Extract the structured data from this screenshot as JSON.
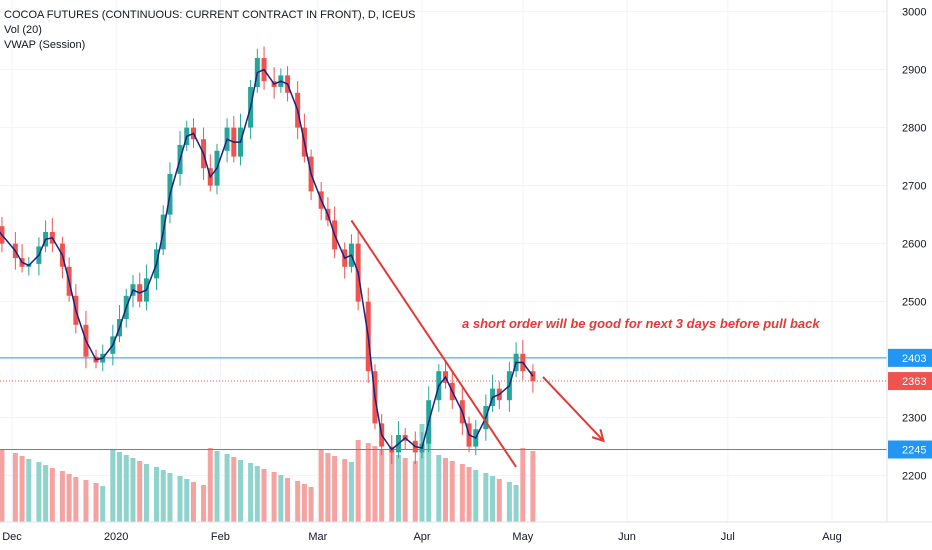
{
  "header": {
    "symbol_title": "COCOA FUTURES (CONTINUOUS: CURRENT CONTRACT IN FRONT), D, ICEUS",
    "indicator_volume": "Vol (20)",
    "indicator_vwap": "VWAP (Session)"
  },
  "annotation": {
    "text": "a short order will be good for next 3 days before pull back",
    "color": "#e53935"
  },
  "colors": {
    "up": "#26a69a",
    "down": "#ef5350",
    "vol_up": "#8fd3cc",
    "vol_down": "#f5a3a1",
    "vwap": "#1a237e",
    "hline": "#2196f3",
    "last_price": "#ef5350",
    "trendline": "#e53935"
  },
  "chart_data": {
    "type": "candlestick",
    "y_axis": {
      "range": [
        2120,
        3020
      ],
      "ticks": [
        "2200",
        "2300",
        "2400",
        "2500",
        "2600",
        "2700",
        "2800",
        "2900",
        "3000"
      ]
    },
    "x_axis": {
      "ticks": [
        {
          "label": "Dec",
          "date": "2019-12-01"
        },
        {
          "label": "2020",
          "date": "2020-01-01"
        },
        {
          "label": "Feb",
          "date": "2020-02-01"
        },
        {
          "label": "Mar",
          "date": "2020-03-01"
        },
        {
          "label": "Apr",
          "date": "2020-04-01"
        },
        {
          "label": "May",
          "date": "2020-05-01"
        },
        {
          "label": "Jun",
          "date": "2020-06-01"
        },
        {
          "label": "Jul",
          "date": "2020-07-01"
        },
        {
          "label": "Aug",
          "date": "2020-08-01"
        }
      ]
    },
    "price_lines": [
      {
        "name": "resistance",
        "value": 2403,
        "label": "2403"
      },
      {
        "name": "support",
        "value": 2245,
        "label": "2245"
      },
      {
        "name": "last-price",
        "value": 2363,
        "label": "2363"
      }
    ],
    "closes": [
      {
        "date": "2019-11-25",
        "close": 2630
      },
      {
        "date": "2019-11-28",
        "close": 2600
      },
      {
        "date": "2019-12-02",
        "close": 2575
      },
      {
        "date": "2019-12-04",
        "close": 2560
      },
      {
        "date": "2019-12-06",
        "close": 2565
      },
      {
        "date": "2019-12-09",
        "close": 2595
      },
      {
        "date": "2019-12-11",
        "close": 2620
      },
      {
        "date": "2019-12-13",
        "close": 2600
      },
      {
        "date": "2019-12-16",
        "close": 2560
      },
      {
        "date": "2019-12-18",
        "close": 2510
      },
      {
        "date": "2019-12-20",
        "close": 2460
      },
      {
        "date": "2019-12-23",
        "close": 2405
      },
      {
        "date": "2019-12-26",
        "close": 2395
      },
      {
        "date": "2019-12-28",
        "close": 2410
      },
      {
        "date": "2019-12-31",
        "close": 2440
      },
      {
        "date": "2020-01-02",
        "close": 2470
      },
      {
        "date": "2020-01-04",
        "close": 2510
      },
      {
        "date": "2020-01-06",
        "close": 2530
      },
      {
        "date": "2020-01-08",
        "close": 2500
      },
      {
        "date": "2020-01-10",
        "close": 2540
      },
      {
        "date": "2020-01-13",
        "close": 2590
      },
      {
        "date": "2020-01-15",
        "close": 2650
      },
      {
        "date": "2020-01-17",
        "close": 2720
      },
      {
        "date": "2020-01-20",
        "close": 2770
      },
      {
        "date": "2020-01-22",
        "close": 2800
      },
      {
        "date": "2020-01-24",
        "close": 2780
      },
      {
        "date": "2020-01-27",
        "close": 2730
      },
      {
        "date": "2020-01-29",
        "close": 2700
      },
      {
        "date": "2020-01-31",
        "close": 2760
      },
      {
        "date": "2020-02-03",
        "close": 2800
      },
      {
        "date": "2020-02-05",
        "close": 2750
      },
      {
        "date": "2020-02-07",
        "close": 2800
      },
      {
        "date": "2020-02-10",
        "close": 2870
      },
      {
        "date": "2020-02-12",
        "close": 2920
      },
      {
        "date": "2020-02-14",
        "close": 2880
      },
      {
        "date": "2020-02-17",
        "close": 2870
      },
      {
        "date": "2020-02-19",
        "close": 2890
      },
      {
        "date": "2020-02-21",
        "close": 2860
      },
      {
        "date": "2020-02-24",
        "close": 2800
      },
      {
        "date": "2020-02-26",
        "close": 2750
      },
      {
        "date": "2020-02-28",
        "close": 2690
      },
      {
        "date": "2020-03-02",
        "close": 2660
      },
      {
        "date": "2020-03-04",
        "close": 2640
      },
      {
        "date": "2020-03-06",
        "close": 2590
      },
      {
        "date": "2020-03-09",
        "close": 2560
      },
      {
        "date": "2020-03-11",
        "close": 2600
      },
      {
        "date": "2020-03-13",
        "close": 2500
      },
      {
        "date": "2020-03-16",
        "close": 2380
      },
      {
        "date": "2020-03-18",
        "close": 2290
      },
      {
        "date": "2020-03-20",
        "close": 2250
      },
      {
        "date": "2020-03-23",
        "close": 2240
      },
      {
        "date": "2020-03-25",
        "close": 2270
      },
      {
        "date": "2020-03-27",
        "close": 2260
      },
      {
        "date": "2020-03-30",
        "close": 2240
      },
      {
        "date": "2020-04-01",
        "close": 2255
      },
      {
        "date": "2020-04-03",
        "close": 2330
      },
      {
        "date": "2020-04-06",
        "close": 2380
      },
      {
        "date": "2020-04-08",
        "close": 2360
      },
      {
        "date": "2020-04-10",
        "close": 2330
      },
      {
        "date": "2020-04-13",
        "close": 2290
      },
      {
        "date": "2020-04-15",
        "close": 2250
      },
      {
        "date": "2020-04-17",
        "close": 2280
      },
      {
        "date": "2020-04-20",
        "close": 2320
      },
      {
        "date": "2020-04-22",
        "close": 2350
      },
      {
        "date": "2020-04-24",
        "close": 2330
      },
      {
        "date": "2020-04-27",
        "close": 2380
      },
      {
        "date": "2020-04-29",
        "close": 2410
      },
      {
        "date": "2020-05-01",
        "close": 2380
      },
      {
        "date": "2020-05-04",
        "close": 2363
      }
    ],
    "trendline": {
      "from": {
        "date": "2020-03-11",
        "price": 2640
      },
      "to": {
        "date": "2020-04-29",
        "price": 2215
      }
    },
    "projection_arrow": {
      "from": {
        "date": "2020-05-07",
        "price": 2370
      },
      "to": {
        "date": "2020-05-25",
        "price": 2260
      }
    }
  }
}
